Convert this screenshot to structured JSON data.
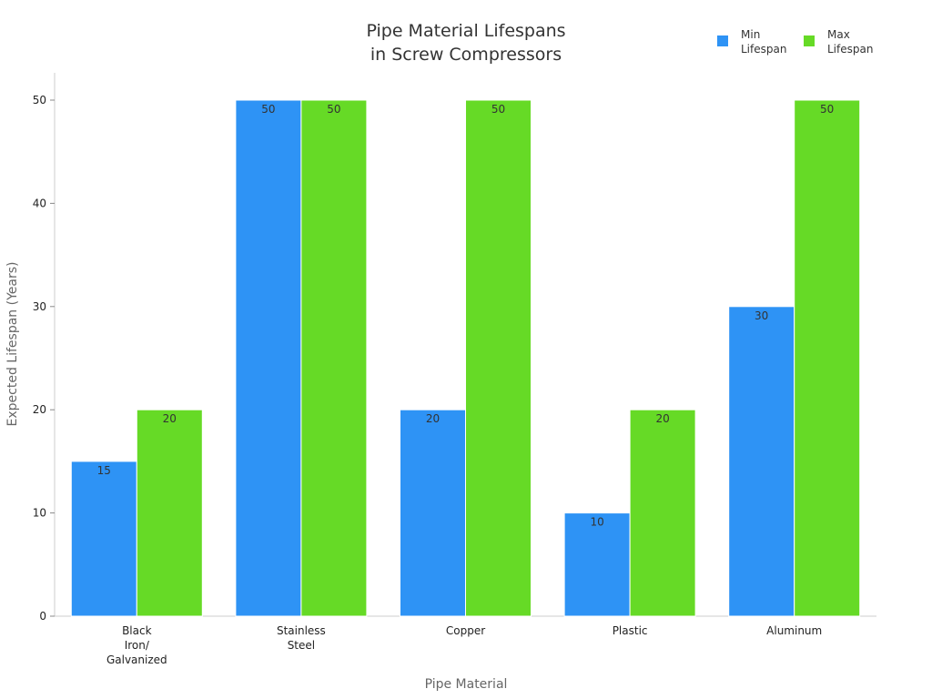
{
  "chart_data": {
    "type": "bar",
    "title": [
      "Pipe Material Lifespans",
      "in Screw Compressors"
    ],
    "xlabel": "Pipe Material",
    "ylabel": "Expected Lifespan (Years)",
    "categories": [
      [
        "Black",
        "Iron/",
        "Galvanized"
      ],
      [
        "Stainless",
        "Steel"
      ],
      [
        "Copper"
      ],
      [
        "Plastic"
      ],
      [
        "Aluminum"
      ]
    ],
    "series": [
      {
        "name": [
          "Min",
          "Lifespan"
        ],
        "color": "#2E93F5",
        "values": [
          15,
          50,
          20,
          10,
          30
        ]
      },
      {
        "name": [
          "Max",
          "Lifespan"
        ],
        "color": "#66DA26",
        "values": [
          20,
          50,
          50,
          20,
          50
        ]
      }
    ],
    "ylim": [
      0,
      52.6
    ],
    "yticks": [
      0,
      10,
      20,
      30,
      40,
      50
    ],
    "grid": false,
    "legend": "top-right",
    "data_labels": true
  }
}
